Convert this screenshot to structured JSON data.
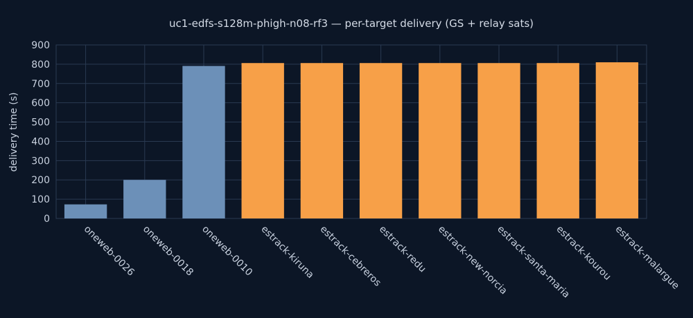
{
  "chart_data": {
    "type": "bar",
    "title": "uc1-edfs-s128m-phigh-n08-rf3 — per-target delivery (GS + relay sats)",
    "xlabel": "",
    "ylabel": "delivery time (s)",
    "ylim": [
      0,
      900
    ],
    "yticks": [
      0,
      100,
      200,
      300,
      400,
      500,
      600,
      700,
      800,
      900
    ],
    "grid": true,
    "categories": [
      "oneweb-0026",
      "oneweb-0018",
      "oneweb-0010",
      "estrack-kiruna",
      "estrack-cebreros",
      "estrack-redu",
      "estrack-new-norcia",
      "estrack-santa-maria",
      "estrack-kourou",
      "estrack-malargue"
    ],
    "values": [
      73,
      200,
      791,
      806,
      806,
      806,
      806,
      806,
      806,
      810
    ],
    "bar_colors": [
      "#6c90b8",
      "#6c90b8",
      "#6c90b8",
      "#f7a048",
      "#f7a048",
      "#f7a048",
      "#f7a048",
      "#f7a048",
      "#f7a048",
      "#f7a048"
    ],
    "colors": {
      "background": "#0c1626",
      "grid": "#2a3a52",
      "text": "#c8d1df",
      "relay_sat": "#6c90b8",
      "ground_station": "#f7a048"
    }
  }
}
